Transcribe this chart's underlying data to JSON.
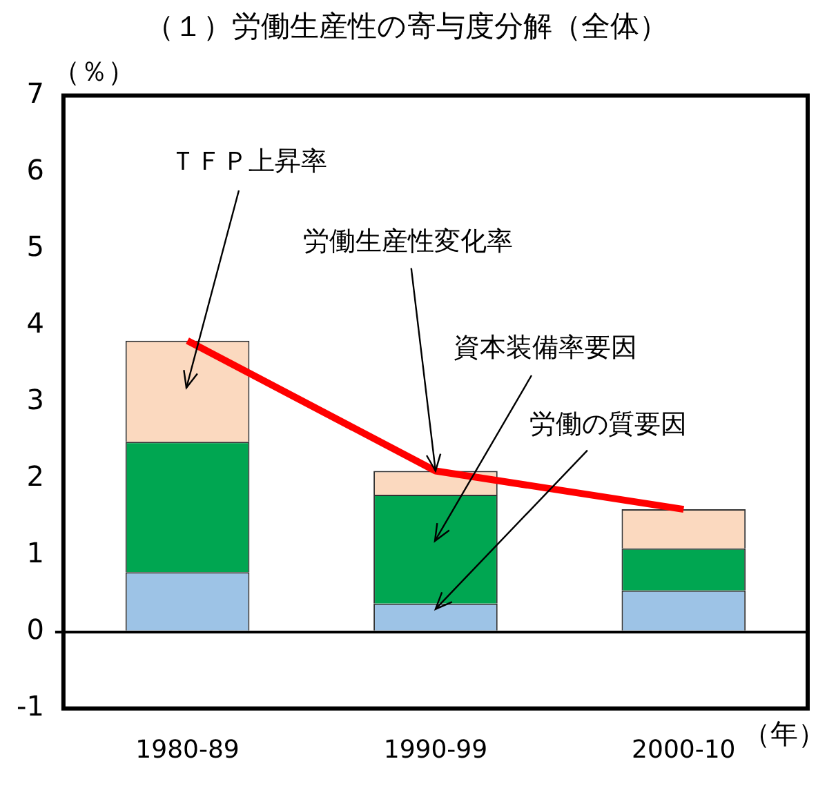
{
  "chart_data": {
    "type": "bar",
    "title": "（１）労働生産性の寄与度分解（全体）",
    "ylabel": "（％）",
    "xlabel": "（年）",
    "categories": [
      "1980-89",
      "1990-99",
      "2000-10"
    ],
    "stacked": true,
    "series": [
      {
        "color": "#9dc3e6",
        "values": [
          0.78,
          0.37,
          0.54
        ]
      },
      {
        "color": "#00a651",
        "values": [
          1.7,
          1.42,
          0.55
        ]
      },
      {
        "color": "#fbd9bf",
        "values": [
          1.32,
          0.31,
          0.51
        ]
      },
      {
        "type": "line",
        "color": "#ff0000",
        "values": [
          3.8,
          2.1,
          1.6
        ],
        "marker": "none"
      }
    ],
    "ylim": [
      -1,
      7
    ],
    "yticks": [
      -1,
      0,
      1,
      2,
      3,
      4,
      5,
      6,
      7
    ],
    "legend": false,
    "annotations": [
      "ＴＦＰ上昇率",
      {
        "text": "労働生産性変化率",
        "x": "1990-99",
        "y": 2.1
      },
      "資本装備率要因",
      {
        "text": "労働の質要因",
        "x": "1990-99",
        "y": 0.37
      }
    ]
  }
}
